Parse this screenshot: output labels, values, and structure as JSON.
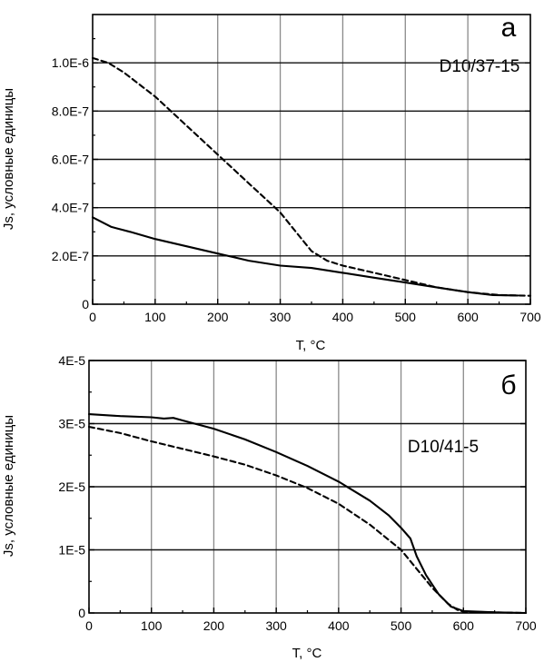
{
  "chart_data": [
    {
      "type": "line",
      "panel_label": "а",
      "sample_label": "D10/37-15",
      "xlabel": "T, °C",
      "ylabel": "Js, условные единицы",
      "xlim": [
        0,
        700
      ],
      "ylim": [
        0,
        1.2e-06
      ],
      "x_ticks": [
        0,
        100,
        200,
        300,
        400,
        500,
        600,
        700
      ],
      "x_tick_labels": [
        "0",
        "100",
        "200",
        "300",
        "400",
        "500",
        "600",
        "700"
      ],
      "y_ticks": [
        0,
        2e-07,
        4e-07,
        6e-07,
        8e-07,
        1e-06
      ],
      "y_tick_labels": [
        "0",
        "2.0E-7",
        "4.0E-7",
        "6.0E-7",
        "8.0E-7",
        "1.0E-6"
      ],
      "grid": true,
      "series": [
        {
          "style": "dashed",
          "x": [
            0,
            25,
            50,
            75,
            100,
            125,
            150,
            175,
            200,
            225,
            250,
            275,
            300,
            325,
            350,
            375,
            400,
            450,
            500,
            550,
            600,
            650,
            700
          ],
          "y": [
            1.02e-06,
            1e-06,
            9.6e-07,
            9.1e-07,
            8.6e-07,
            8e-07,
            7.4e-07,
            6.8e-07,
            6.2e-07,
            5.6e-07,
            5e-07,
            4.4e-07,
            3.8e-07,
            3e-07,
            2.2e-07,
            1.8e-07,
            1.6e-07,
            1.3e-07,
            1e-07,
            7e-08,
            5e-08,
            3.8e-08,
            3.5e-08
          ]
        },
        {
          "style": "solid",
          "x": [
            0,
            30,
            60,
            100,
            150,
            200,
            250,
            300,
            350,
            400,
            450,
            500,
            550,
            600,
            640,
            680
          ],
          "y": [
            3.6e-07,
            3.2e-07,
            3e-07,
            2.7e-07,
            2.4e-07,
            2.1e-07,
            1.8e-07,
            1.6e-07,
            1.5e-07,
            1.3e-07,
            1.1e-07,
            9e-08,
            7e-08,
            5e-08,
            3.8e-08,
            3.6e-08
          ]
        }
      ]
    },
    {
      "type": "line",
      "panel_label": "б",
      "sample_label": "D10/41-5",
      "xlabel": "T, °C",
      "ylabel": "Js, условные единицы",
      "xlim": [
        0,
        700
      ],
      "ylim": [
        0,
        4e-05
      ],
      "x_ticks": [
        0,
        100,
        200,
        300,
        400,
        500,
        600,
        700
      ],
      "x_tick_labels": [
        "0",
        "100",
        "200",
        "300",
        "400",
        "500",
        "600",
        "700"
      ],
      "y_ticks": [
        0,
        1e-05,
        2e-05,
        3e-05,
        4e-05
      ],
      "y_tick_labels": [
        "0",
        "1E-5",
        "2E-5",
        "3E-5",
        "4E-5"
      ],
      "grid": true,
      "series": [
        {
          "style": "solid",
          "x": [
            0,
            50,
            100,
            120,
            135,
            150,
            200,
            250,
            300,
            350,
            400,
            450,
            480,
            500,
            515,
            525,
            540,
            560,
            580,
            600,
            650,
            700
          ],
          "y": [
            3.15e-05,
            3.12e-05,
            3.1e-05,
            3.08e-05,
            3.09e-05,
            3.05e-05,
            2.92e-05,
            2.75e-05,
            2.55e-05,
            2.33e-05,
            2.08e-05,
            1.78e-05,
            1.55e-05,
            1.35e-05,
            1.18e-05,
            9e-06,
            6e-06,
            3e-06,
            1e-06,
            3e-07,
            1e-07,
            0
          ]
        },
        {
          "style": "dashed",
          "x": [
            0,
            50,
            100,
            150,
            200,
            250,
            300,
            350,
            400,
            450,
            500,
            525,
            550,
            575,
            590,
            600,
            650,
            700
          ],
          "y": [
            2.95e-05,
            2.85e-05,
            2.72e-05,
            2.6e-05,
            2.48e-05,
            2.35e-05,
            2.18e-05,
            1.98e-05,
            1.73e-05,
            1.4e-05,
            1e-05,
            7e-06,
            4e-06,
            1.5e-06,
            5e-07,
            2e-07,
            1e-07,
            0
          ]
        }
      ]
    }
  ]
}
